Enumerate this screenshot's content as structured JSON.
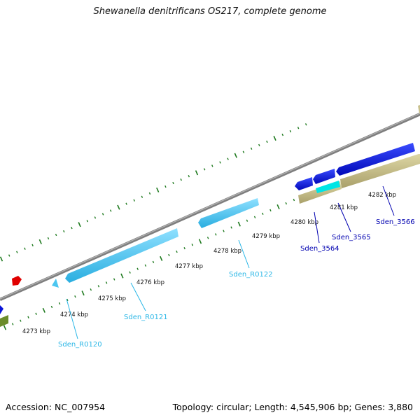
{
  "title": "Shewanella denitrificans OS217, complete genome",
  "footer": {
    "accession": "Accession: NC_007954",
    "stats": "Topology: circular; Length: 4,545,906 bp; Genes: 3,880"
  },
  "ruler_labels": [
    "4273 kbp",
    "4274 kbp",
    "4275 kbp",
    "4276 kbp",
    "4277 kbp",
    "4278 kbp",
    "4279 kbp",
    "4280 kbp",
    "4281 kbp",
    "4282 kbp"
  ],
  "gene_labels": [
    {
      "text": "Sden_R0120",
      "color": "#29b6e6"
    },
    {
      "text": "Sden_R0121",
      "color": "#29b6e6"
    },
    {
      "text": "Sden_R0122",
      "color": "#29b6e6"
    },
    {
      "text": "Sden_3564",
      "color": "#0000b0"
    },
    {
      "text": "Sden_3565",
      "color": "#0000b0"
    },
    {
      "text": "Sden_3566",
      "color": "#0000b0"
    }
  ],
  "colors": {
    "backbone": "#8c8c8c",
    "ruler_ticks": "#1f7a1f",
    "trna_feature": "#4cc6f0",
    "cds_forward": "#0a14d8",
    "cds_other": "#c8c08c",
    "highlight_feature": "#00e5e5",
    "misc_feature": "#e00000",
    "olive_feature": "#6b8c2a"
  }
}
